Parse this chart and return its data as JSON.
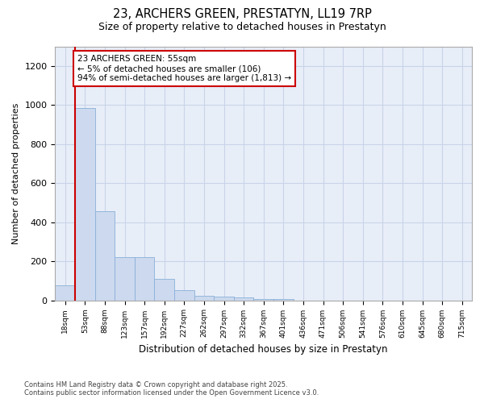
{
  "title1": "23, ARCHERS GREEN, PRESTATYN, LL19 7RP",
  "title2": "Size of property relative to detached houses in Prestatyn",
  "xlabel": "Distribution of detached houses by size in Prestatyn",
  "ylabel": "Number of detached properties",
  "categories": [
    "18sqm",
    "53sqm",
    "88sqm",
    "123sqm",
    "157sqm",
    "192sqm",
    "227sqm",
    "262sqm",
    "297sqm",
    "332sqm",
    "367sqm",
    "401sqm",
    "436sqm",
    "471sqm",
    "506sqm",
    "541sqm",
    "576sqm",
    "610sqm",
    "645sqm",
    "680sqm",
    "715sqm"
  ],
  "values": [
    75,
    985,
    455,
    220,
    220,
    110,
    50,
    22,
    20,
    15,
    8,
    5,
    0,
    0,
    0,
    0,
    0,
    0,
    0,
    0,
    0
  ],
  "bar_color": "#ccd9ee",
  "bar_edge_color": "#8ab0d8",
  "vline_color": "#cc0000",
  "annotation_text": "23 ARCHERS GREEN: 55sqm\n← 5% of detached houses are smaller (106)\n94% of semi-detached houses are larger (1,813) →",
  "annotation_box_color": "#cc0000",
  "ylim": [
    0,
    1300
  ],
  "yticks": [
    0,
    200,
    400,
    600,
    800,
    1000,
    1200
  ],
  "grid_color": "#c8d4e8",
  "bg_color": "#e8eef8",
  "footer": "Contains HM Land Registry data © Crown copyright and database right 2025.\nContains public sector information licensed under the Open Government Licence v3.0."
}
